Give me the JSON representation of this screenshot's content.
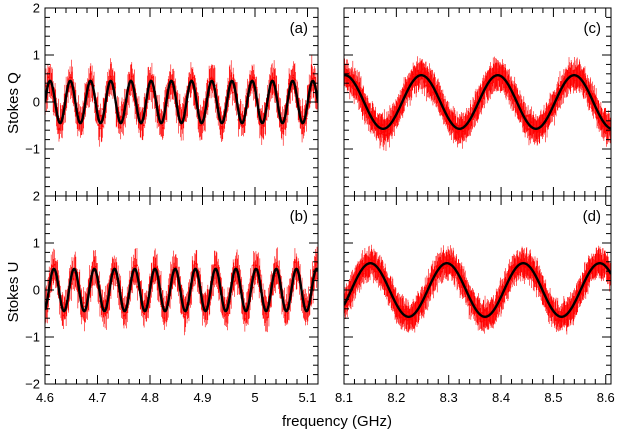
{
  "chart_data": {
    "type": "scatter",
    "xlabel": "frequency (GHz)",
    "colors": {
      "data": "#ff0000",
      "model": "#000000"
    },
    "row_labels": [
      "Stokes Q",
      "Stokes U"
    ],
    "ylim": [
      -2,
      2
    ],
    "y_ticks_major": [
      -2,
      -1,
      0,
      1,
      2
    ],
    "left_xlim": [
      4.6,
      5.12
    ],
    "right_xlim": [
      8.1,
      8.61
    ],
    "left_x_ticks": [
      "4.6",
      "4.7",
      "4.8",
      "4.9",
      "5",
      "5.1"
    ],
    "right_x_ticks": [
      "8.1",
      "8.2",
      "8.3",
      "8.4",
      "8.5",
      "8.6"
    ],
    "panels": [
      {
        "id": "a",
        "label": "(a)",
        "quantity": "Stokes Q",
        "xlim": [
          4.6,
          5.12
        ],
        "model": {
          "amplitude": 0.45,
          "period_ghz": 0.0385,
          "phase_at_xmin": 0.0
        },
        "data": {
          "count": 420,
          "scatter": 0.12,
          "error_bar": 0.3
        }
      },
      {
        "id": "b",
        "label": "(b)",
        "quantity": "Stokes U",
        "xlim": [
          4.6,
          5.12
        ],
        "model": {
          "amplitude": 0.45,
          "period_ghz": 0.0385,
          "phase_at_xmin": -1.2
        },
        "data": {
          "count": 420,
          "scatter": 0.12,
          "error_bar": 0.3
        }
      },
      {
        "id": "c",
        "label": "(c)",
        "quantity": "Stokes Q",
        "xlim": [
          8.1,
          8.61
        ],
        "model": {
          "amplitude": 0.57,
          "period_ghz": 0.146,
          "phase_at_xmin": 1.5
        },
        "data": {
          "count": 620,
          "scatter": 0.09,
          "error_bar": 0.26
        }
      },
      {
        "id": "d",
        "label": "(d)",
        "quantity": "Stokes U",
        "xlim": [
          8.1,
          8.61
        ],
        "model": {
          "amplitude": 0.57,
          "period_ghz": 0.146,
          "phase_at_xmin": -0.6
        },
        "data": {
          "count": 620,
          "scatter": 0.09,
          "error_bar": 0.26
        }
      }
    ]
  }
}
